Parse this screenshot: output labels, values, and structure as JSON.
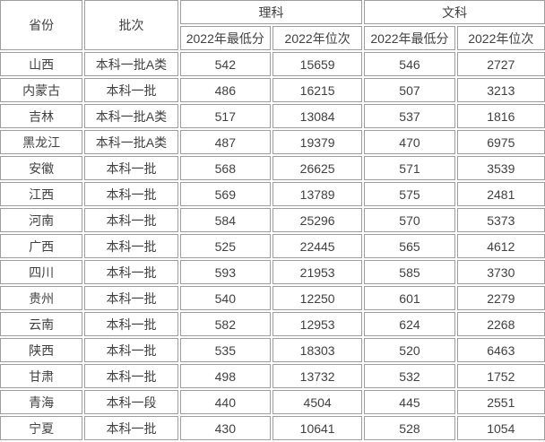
{
  "colors": {
    "border": "#9d9d9d",
    "text": "#404040",
    "background": "#ffffff"
  },
  "table": {
    "header": {
      "province": "省份",
      "batch": "批次",
      "science_group": "理科",
      "arts_group": "文科",
      "min_score_2022": "2022年最低分",
      "rank_2022": "2022年位次"
    },
    "columns": [
      "province",
      "batch",
      "sci_min",
      "sci_rank",
      "art_min",
      "art_rank"
    ],
    "rows": [
      {
        "province": "山西",
        "batch": "本科一批A类",
        "sci_min": "542",
        "sci_rank": "15659",
        "art_min": "546",
        "art_rank": "2727"
      },
      {
        "province": "内蒙古",
        "batch": "本科一批",
        "sci_min": "486",
        "sci_rank": "16215",
        "art_min": "507",
        "art_rank": "3213"
      },
      {
        "province": "吉林",
        "batch": "本科一批A类",
        "sci_min": "517",
        "sci_rank": "13084",
        "art_min": "537",
        "art_rank": "1816"
      },
      {
        "province": "黑龙江",
        "batch": "本科一批A类",
        "sci_min": "487",
        "sci_rank": "19379",
        "art_min": "470",
        "art_rank": "6975"
      },
      {
        "province": "安徽",
        "batch": "本科一批",
        "sci_min": "568",
        "sci_rank": "26625",
        "art_min": "571",
        "art_rank": "3539"
      },
      {
        "province": "江西",
        "batch": "本科一批",
        "sci_min": "569",
        "sci_rank": "13789",
        "art_min": "575",
        "art_rank": "2481"
      },
      {
        "province": "河南",
        "batch": "本科一批",
        "sci_min": "584",
        "sci_rank": "25296",
        "art_min": "570",
        "art_rank": "5373"
      },
      {
        "province": "广西",
        "batch": "本科一批",
        "sci_min": "525",
        "sci_rank": "22445",
        "art_min": "565",
        "art_rank": "4612"
      },
      {
        "province": "四川",
        "batch": "本科一批",
        "sci_min": "593",
        "sci_rank": "21953",
        "art_min": "585",
        "art_rank": "3730"
      },
      {
        "province": "贵州",
        "batch": "本科一批",
        "sci_min": "540",
        "sci_rank": "12250",
        "art_min": "601",
        "art_rank": "2279"
      },
      {
        "province": "云南",
        "batch": "本科一批",
        "sci_min": "582",
        "sci_rank": "12953",
        "art_min": "624",
        "art_rank": "2268"
      },
      {
        "province": "陕西",
        "batch": "本科一批",
        "sci_min": "535",
        "sci_rank": "18303",
        "art_min": "520",
        "art_rank": "6463"
      },
      {
        "province": "甘肃",
        "batch": "本科一批",
        "sci_min": "498",
        "sci_rank": "13732",
        "art_min": "532",
        "art_rank": "1752"
      },
      {
        "province": "青海",
        "batch": "本科一段",
        "sci_min": "440",
        "sci_rank": "4504",
        "art_min": "445",
        "art_rank": "2551"
      },
      {
        "province": "宁夏",
        "batch": "本科一批",
        "sci_min": "430",
        "sci_rank": "10641",
        "art_min": "528",
        "art_rank": "1054"
      }
    ]
  }
}
